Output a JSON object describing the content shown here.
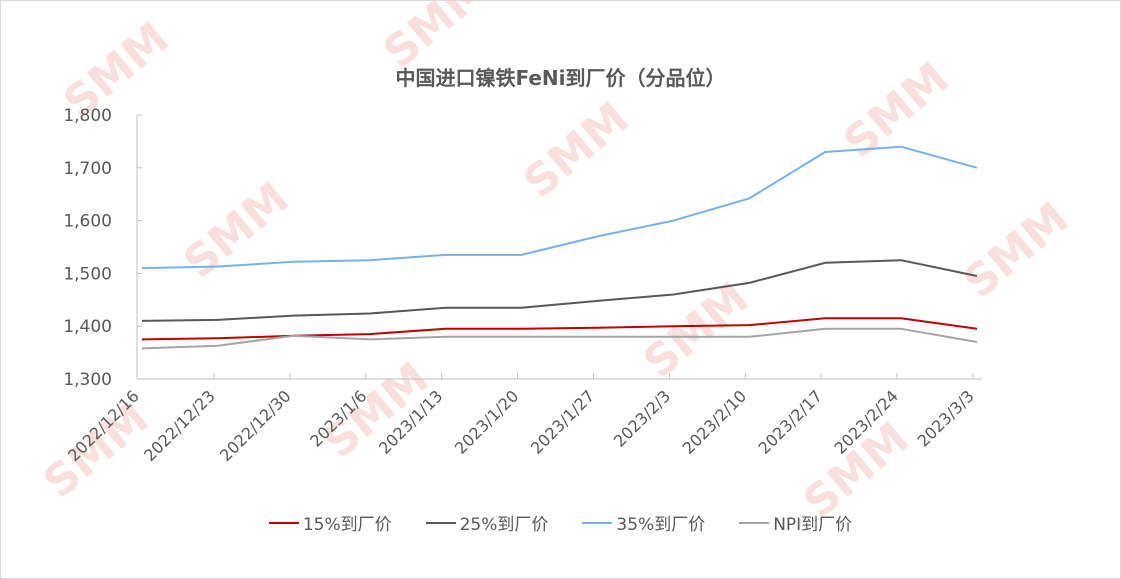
{
  "chart_data": {
    "type": "line",
    "title": "中国进口镍铁FeNi到厂价（分品位）",
    "xlabel": "",
    "ylabel": "",
    "ylim": [
      1300,
      1800
    ],
    "yticks": [
      1300,
      1400,
      1500,
      1600,
      1700,
      1800
    ],
    "ytick_labels": [
      "1,300",
      "1,400",
      "1,500",
      "1,600",
      "1,700",
      "1,800"
    ],
    "grid": false,
    "legend_position": "bottom",
    "categories": [
      "2022/12/16",
      "2022/12/23",
      "2022/12/30",
      "2023/1/6",
      "2023/1/13",
      "2023/1/20",
      "2023/1/27",
      "2023/2/3",
      "2023/2/10",
      "2023/2/17",
      "2023/2/24",
      "2023/3/3"
    ],
    "series": [
      {
        "name": "15%到厂价",
        "color": "#c00000",
        "values": [
          1375,
          1377,
          1382,
          1385,
          1395,
          1395,
          1397,
          1400,
          1402,
          1415,
          1415,
          1395
        ]
      },
      {
        "name": "25%到厂价",
        "color": "#595959",
        "values": [
          1410,
          1412,
          1420,
          1424,
          1435,
          1435,
          1448,
          1460,
          1482,
          1520,
          1525,
          1495
        ]
      },
      {
        "name": "35%到厂价",
        "color": "#7cafe6",
        "values": [
          1510,
          1513,
          1522,
          1525,
          1535,
          1535,
          1570,
          1600,
          1642,
          1730,
          1740,
          1700
        ]
      },
      {
        "name": "NPI到厂价",
        "color": "#a5a5a5",
        "values": [
          1358,
          1363,
          1382,
          1375,
          1380,
          1380,
          1380,
          1380,
          1380,
          1395,
          1395,
          1370
        ]
      }
    ],
    "watermark": "SMM"
  }
}
